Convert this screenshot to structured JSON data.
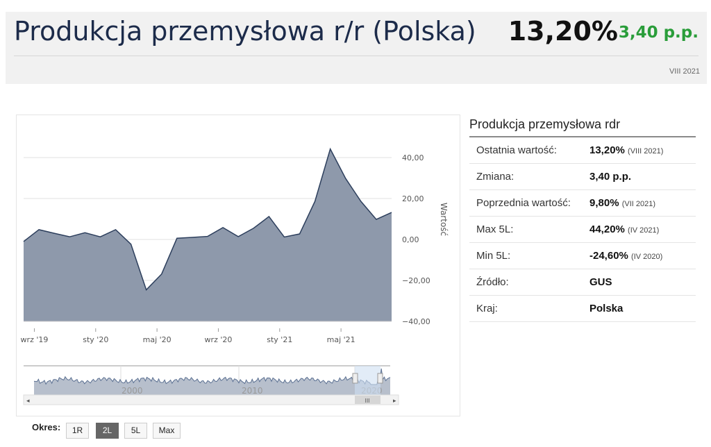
{
  "header": {
    "title": "Produkcja przemysłowa r/r (Polska)",
    "value": "13,20%",
    "change": "3,40 p.p.",
    "date": "VIII 2021"
  },
  "chart_data": {
    "type": "area",
    "x": [
      "VIII 2019",
      "IX 2019",
      "X 2019",
      "XI 2019",
      "XII 2019",
      "I 2020",
      "II 2020",
      "III 2020",
      "IV 2020",
      "V 2020",
      "VI 2020",
      "VII 2020",
      "VIII 2020",
      "IX 2020",
      "X 2020",
      "XI 2020",
      "XII 2020",
      "I 2021",
      "II 2021",
      "III 2021",
      "IV 2021",
      "V 2021",
      "VI 2021",
      "VII 2021",
      "VIII 2021"
    ],
    "values": [
      -1.0,
      4.8,
      3.0,
      1.3,
      3.3,
      1.3,
      4.8,
      -2.3,
      -24.6,
      -16.9,
      0.6,
      1.0,
      1.5,
      5.8,
      1.4,
      5.5,
      11.2,
      1.2,
      2.7,
      18.6,
      44.2,
      29.8,
      18.6,
      9.8,
      13.2
    ],
    "ylim": [
      -40,
      40
    ],
    "yticks": [
      "40,00",
      "20,00",
      "0,00",
      "−20,00",
      "−40,00"
    ],
    "ytick_values": [
      40,
      20,
      0,
      -20,
      -40
    ],
    "ylabel": "Wartość",
    "xticks": [
      {
        "label": "wrz '19",
        "index": 0.7
      },
      {
        "label": "sty '20",
        "index": 4.7
      },
      {
        "label": "maj '20",
        "index": 8.7
      },
      {
        "label": "wrz '20",
        "index": 12.7
      },
      {
        "label": "sty '21",
        "index": 16.7
      },
      {
        "label": "maj '21",
        "index": 20.7
      }
    ],
    "navigator_labels": [
      "2000",
      "2010",
      "2020"
    ],
    "grid": true,
    "colors": {
      "line": "#2c3e5c",
      "fill": "#8e99ab",
      "grid": "#e2e2e2",
      "nav_fill": "#b7bfcc",
      "nav_selection": "#cfe0f2"
    }
  },
  "range": {
    "label": "Okres:",
    "buttons": [
      "1R",
      "2L",
      "5L",
      "Max"
    ],
    "active": "2L"
  },
  "panel": {
    "title": "Produkcja przemysłowa rdr",
    "rows": [
      {
        "label": "Ostatnia wartość:",
        "value": "13,20%",
        "note": "(VIII 2021)"
      },
      {
        "label": "Zmiana:",
        "value": "3,40 p.p.",
        "note": ""
      },
      {
        "label": "Poprzednia wartość:",
        "value": "9,80%",
        "note": "(VII 2021)"
      },
      {
        "label": "Max 5L:",
        "value": "44,20%",
        "note": "(IV 2021)"
      },
      {
        "label": "Min 5L:",
        "value": "-24,60%",
        "note": "(IV 2020)"
      },
      {
        "label": "Źródło:",
        "value": "GUS",
        "note": ""
      },
      {
        "label": "Kraj:",
        "value": "Polska",
        "note": ""
      }
    ]
  }
}
